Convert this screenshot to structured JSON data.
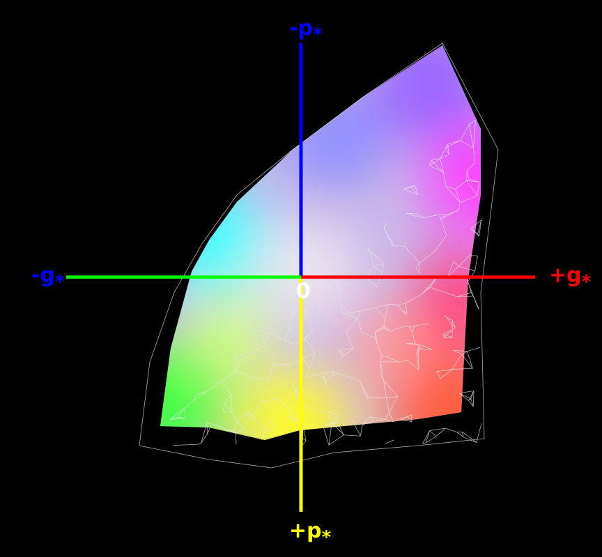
{
  "axes": {
    "top": {
      "label": "-p",
      "subscript": "*"
    },
    "bottom": {
      "label": "+p",
      "subscript": "*"
    },
    "left": {
      "label": "-g",
      "subscript": "*"
    },
    "right": {
      "label": "+g",
      "subscript": "*"
    }
  },
  "origin": "0"
}
